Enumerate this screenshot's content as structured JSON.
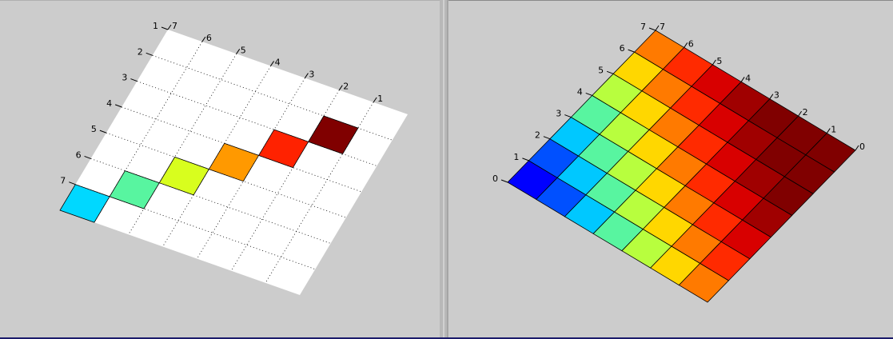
{
  "chart_data": [
    {
      "type": "heatmap",
      "grid": true,
      "rows": 7,
      "cols": 7,
      "left_axis_ticks": [
        "1",
        "2",
        "3",
        "4",
        "5",
        "6",
        "7"
      ],
      "top_axis_ticks": [
        "7",
        "6",
        "5",
        "4",
        "3",
        "2",
        "1"
      ],
      "cells": [
        {
          "row": 7,
          "col": 7,
          "color": "#00d8ff"
        },
        {
          "row": 6,
          "col": 6,
          "color": "#58f5a0"
        },
        {
          "row": 5,
          "col": 5,
          "color": "#d8fe1e"
        },
        {
          "row": 4,
          "col": 4,
          "color": "#ff9900"
        },
        {
          "row": 3,
          "col": 3,
          "color": "#ff2200"
        },
        {
          "row": 2,
          "col": 2,
          "color": "#800000"
        }
      ]
    },
    {
      "type": "heatmap",
      "grid": true,
      "rows": 7,
      "cols": 7,
      "left_axis_ticks": [
        "0",
        "1",
        "2",
        "3",
        "4",
        "5",
        "6",
        "7"
      ],
      "top_axis_ticks": [
        "7",
        "6",
        "5",
        "4",
        "3",
        "2",
        "1",
        "0"
      ],
      "colors": [
        [
          "#0000ff",
          "#0050ff",
          "#00c8ff",
          "#58f5a0",
          "#b8fe3e",
          "#ffd700",
          "#ff7a00"
        ],
        [
          "#0050ff",
          "#00c8ff",
          "#58f5a0",
          "#b8fe3e",
          "#ffd700",
          "#ff7a00",
          "#ff2a00"
        ],
        [
          "#00c8ff",
          "#58f5a0",
          "#b8fe3e",
          "#ffd700",
          "#ff7a00",
          "#ff2a00",
          "#d80000"
        ],
        [
          "#58f5a0",
          "#b8fe3e",
          "#ffd700",
          "#ff7a00",
          "#ff2a00",
          "#d80000",
          "#a00000"
        ],
        [
          "#b8fe3e",
          "#ffd700",
          "#ff7a00",
          "#ff2a00",
          "#d80000",
          "#a00000",
          "#800000"
        ],
        [
          "#ffd700",
          "#ff7a00",
          "#ff2a00",
          "#d80000",
          "#a00000",
          "#800000",
          "#800000"
        ],
        [
          "#ff7a00",
          "#ff2a00",
          "#d80000",
          "#a00000",
          "#800000",
          "#800000",
          "#800000"
        ]
      ]
    }
  ]
}
